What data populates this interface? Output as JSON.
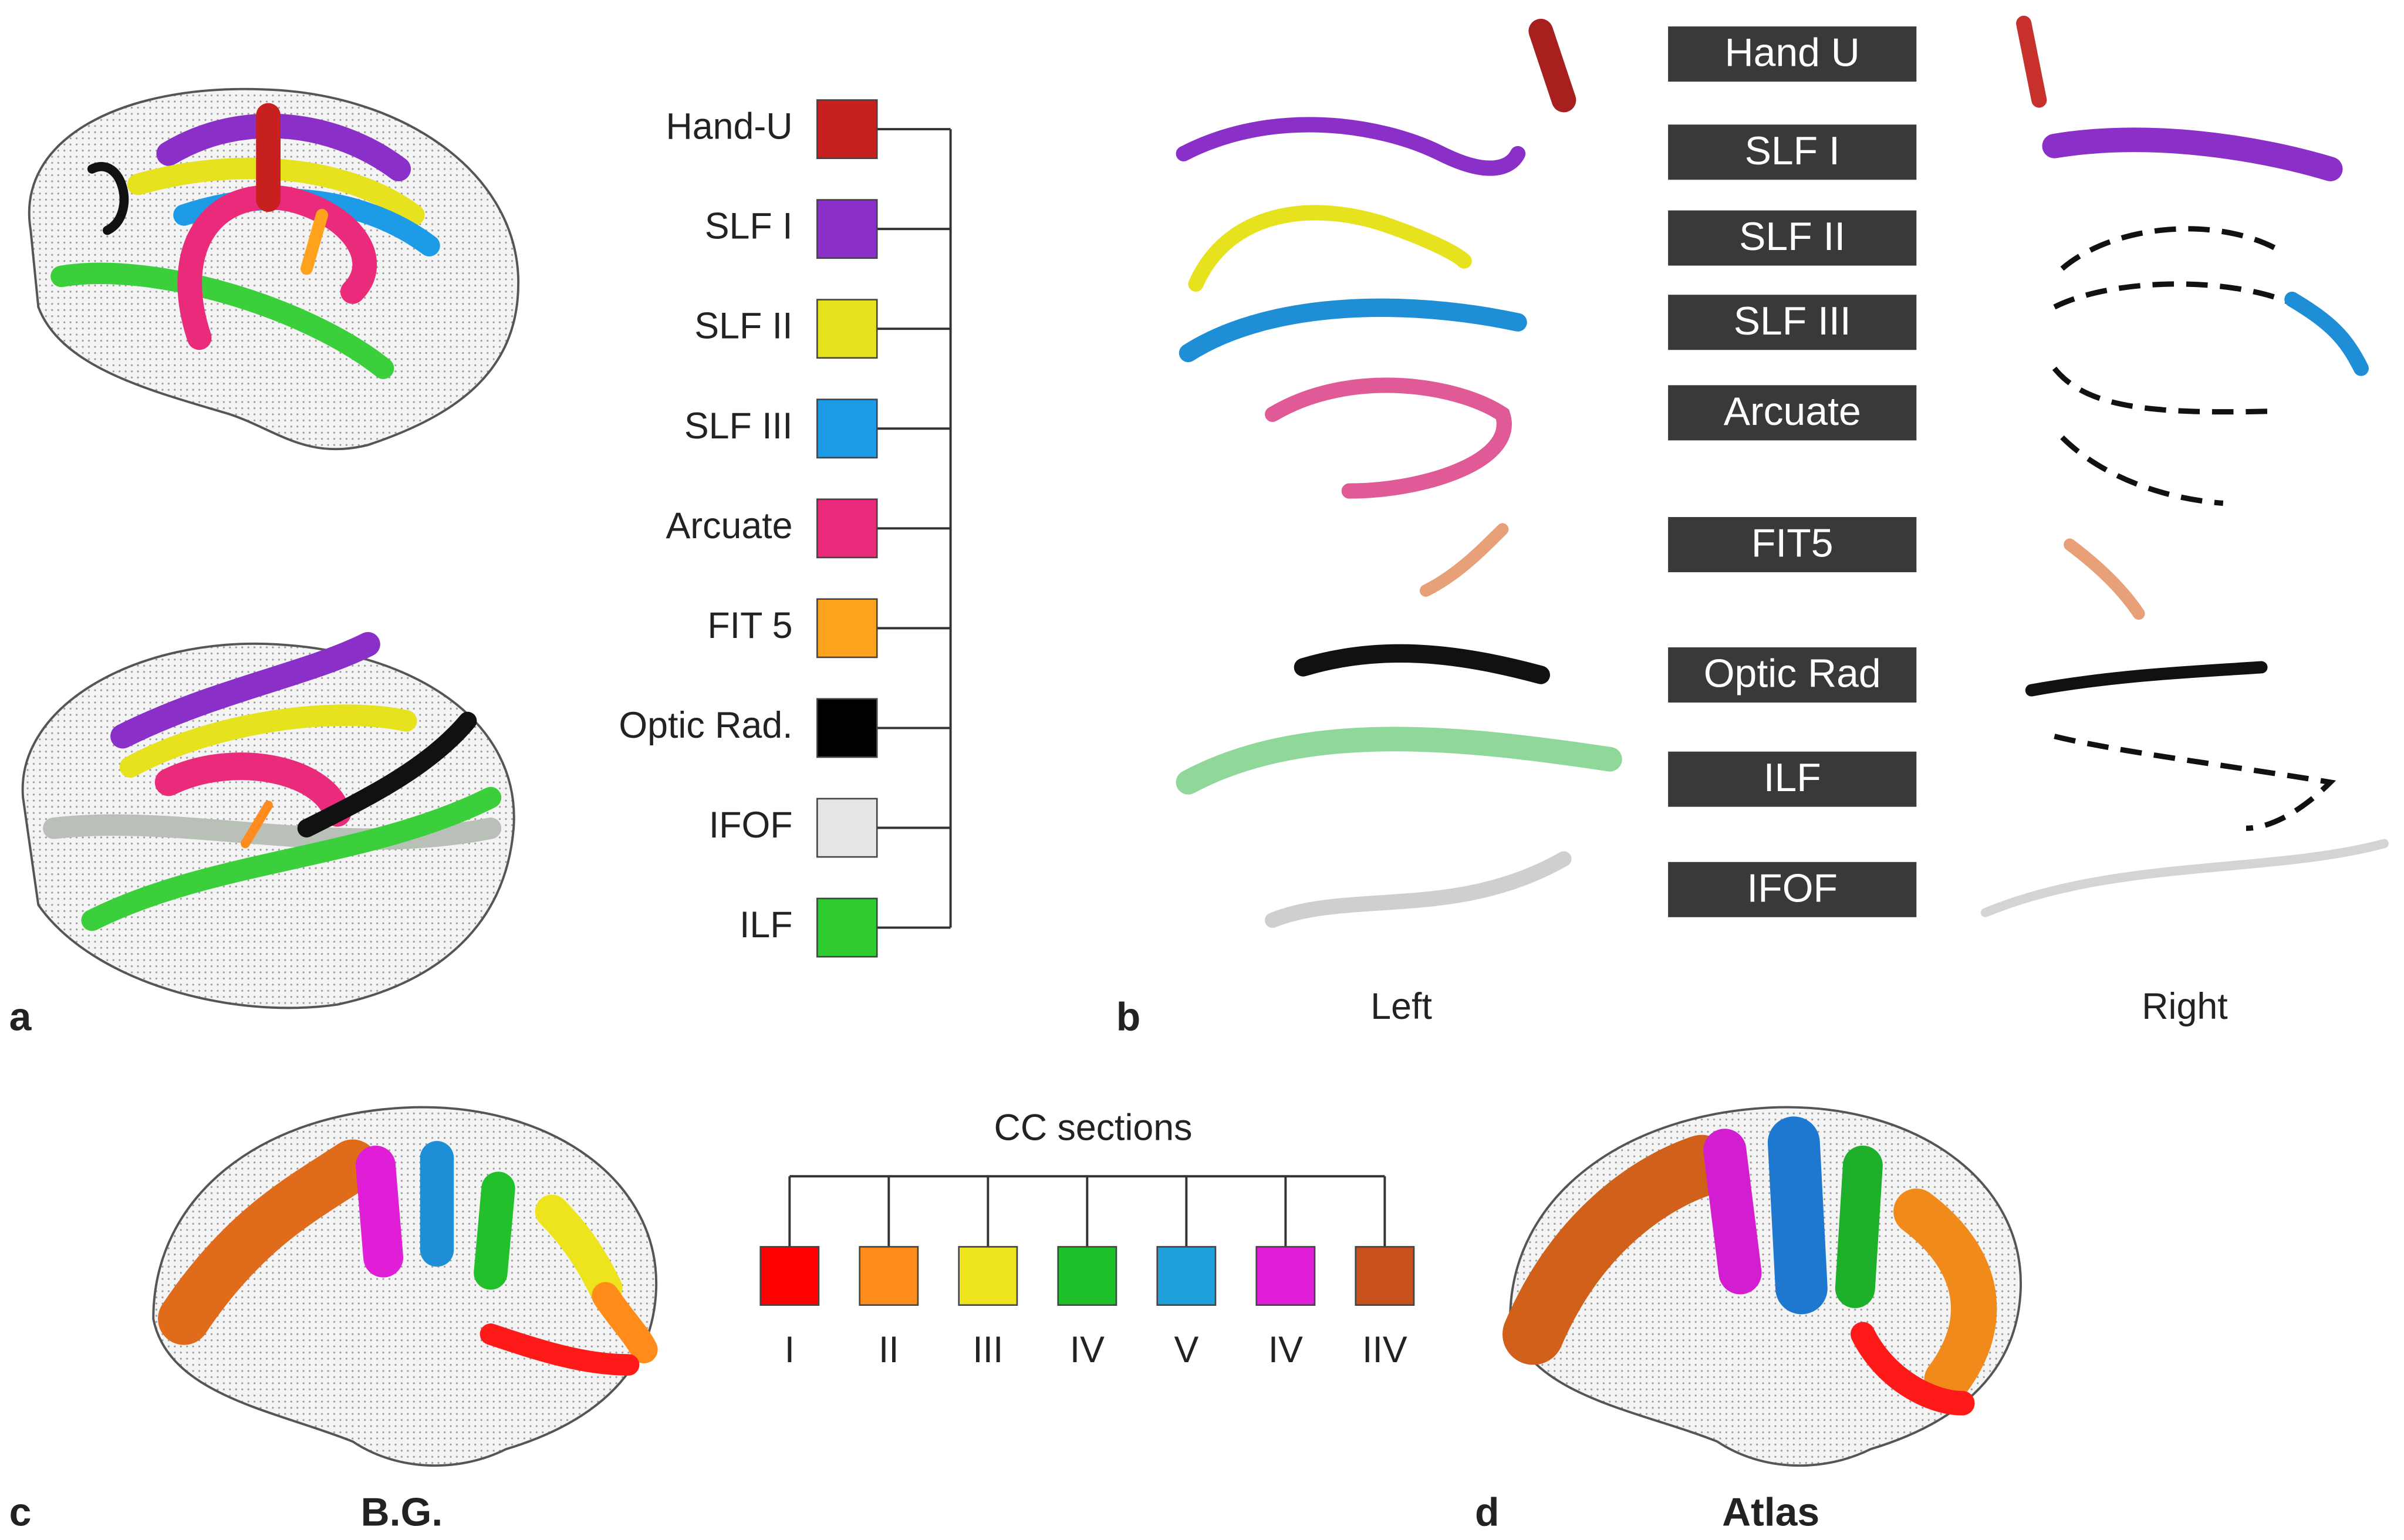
{
  "panel_a": {
    "letter": "a",
    "legend": [
      {
        "label": "Hand-U",
        "color": "#c8201e"
      },
      {
        "label": "SLF I",
        "color": "#8b2fc9"
      },
      {
        "label": "SLF II",
        "color": "#e6e21e"
      },
      {
        "label": "SLF III",
        "color": "#1e9be6"
      },
      {
        "label": "Arcuate",
        "color": "#ea2a7a"
      },
      {
        "label": "FIT 5",
        "color": "#ffa21e"
      },
      {
        "label": "Optic Rad.",
        "color": "#000000"
      },
      {
        "label": "IFOF",
        "color": "#e6e6e8"
      },
      {
        "label": "ILF",
        "color": "#2ecc2e"
      }
    ]
  },
  "panel_b": {
    "letter": "b",
    "tracts": [
      "Hand U",
      "SLF I",
      "SLF II",
      "SLF III",
      "Arcuate",
      "FIT5",
      "Optic Rad",
      "ILF",
      "IFOF"
    ],
    "left_label": "Left",
    "right_label": "Right"
  },
  "panel_c": {
    "letter": "c",
    "caption": "B.G.",
    "legend_title": "CC sections",
    "sections": [
      {
        "label": "I",
        "color": "#ff0000"
      },
      {
        "label": "II",
        "color": "#ff8c1a"
      },
      {
        "label": "III",
        "color": "#eee41e"
      },
      {
        "label": "IV",
        "color": "#1ec02a"
      },
      {
        "label": "V",
        "color": "#1ea0dc"
      },
      {
        "label": "IV",
        "color": "#e01ed8"
      },
      {
        "label": "IIV",
        "color": "#c8501a"
      }
    ]
  },
  "panel_d": {
    "letter": "d",
    "caption": "Atlas"
  }
}
